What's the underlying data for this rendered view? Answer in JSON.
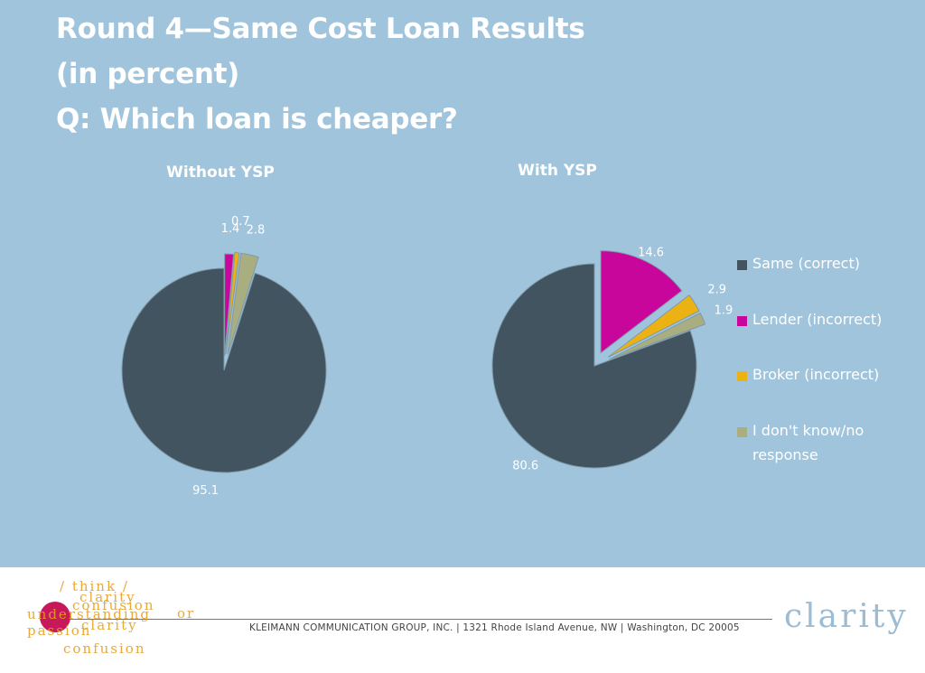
{
  "title": {
    "line1": "Round 4—Same Cost Loan Results",
    "line2": "(in percent)",
    "line3": "Q: Which loan is cheaper?"
  },
  "chart_data": [
    {
      "type": "pie",
      "title": "Without YSP",
      "categories": [
        "Same (correct)",
        "Lender (incorrect)",
        "Broker (incorrect)",
        "I don't know/no response"
      ],
      "values": [
        95.1,
        1.4,
        0.7,
        2.8
      ],
      "value_labels": [
        "95.1",
        "1.4",
        "0.7",
        "2.8"
      ],
      "exploded": true,
      "legend": "right"
    },
    {
      "type": "pie",
      "title": "With YSP",
      "categories": [
        "Same (correct)",
        "Lender (incorrect)",
        "Broker (incorrect)",
        "I don't know/no response"
      ],
      "values": [
        80.6,
        14.6,
        2.9,
        1.9
      ],
      "value_labels": [
        "80.6",
        "14.6",
        "2.9",
        "1.9"
      ],
      "exploded": true,
      "legend": "right"
    }
  ],
  "legend": {
    "items": [
      {
        "label": "Same (correct)",
        "color": "#435461"
      },
      {
        "label": "Lender (incorrect)",
        "color": "#c8069c"
      },
      {
        "label": "Broker (incorrect)",
        "color": "#ecb214"
      },
      {
        "label": "I don't know/no response",
        "color": "#a8ae80"
      }
    ]
  },
  "footer": {
    "address": "KLEIMANN COMMUNICATION GROUP, INC. | 1321 Rhode Island Avenue, NW | Washington, DC 20005",
    "brand": "clarity",
    "logo_words": [
      "/ think /",
      "clarity",
      "confusion",
      "understanding",
      "or",
      "passion",
      "clarity",
      "confusion"
    ]
  }
}
